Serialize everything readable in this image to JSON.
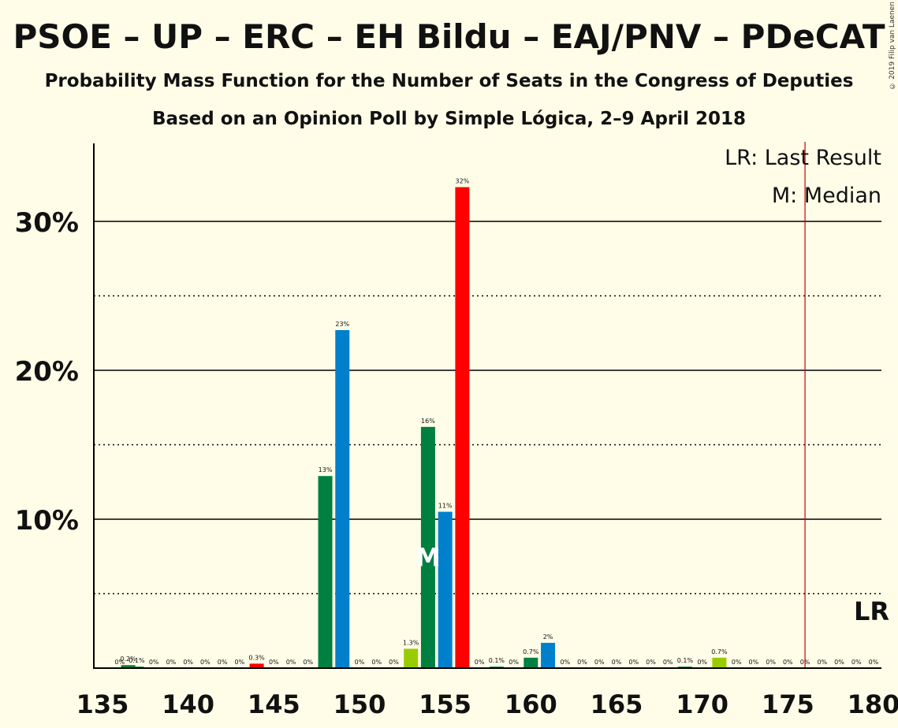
{
  "header": {
    "title": "PSOE – UP – ERC – EH Bildu – EAJ/PNV – PDeCAT",
    "subtitle1": "Probability Mass Function for the Number of Seats in the Congress of Deputies",
    "subtitle2": "Based on an Opinion Poll by Simple Lógica, 2–9 April 2018",
    "copyright": "© 2019 Filip van Laenen"
  },
  "legend": {
    "lr": "LR: Last Result",
    "median": "M: Median",
    "lr_marker": "LR",
    "median_marker": "M"
  },
  "colors": {
    "background": "#FFFDE8",
    "red": "#FF0000",
    "green": "#008040",
    "blue": "#0080CC",
    "lime": "#99CC00",
    "lr_line": "#CC0000"
  },
  "chart_data": {
    "type": "bar",
    "xlim": [
      135,
      180
    ],
    "ylim": [
      0,
      35
    ],
    "x_ticks": [
      135,
      140,
      145,
      150,
      155,
      160,
      165,
      170,
      175,
      180
    ],
    "y_ticks": [
      {
        "value": 10,
        "label": "10%"
      },
      {
        "value": 20,
        "label": "20%"
      },
      {
        "value": 30,
        "label": "30%"
      }
    ],
    "y_minor": [
      5,
      15,
      25
    ],
    "last_result": 176,
    "median": 154,
    "bars": [
      {
        "x": 136,
        "value": 0,
        "label": "0%",
        "color": "green"
      },
      {
        "x": 136.5,
        "value": 0.2,
        "label": "0.2%",
        "color": "green"
      },
      {
        "x": 137,
        "value": 0.1,
        "label": "0.1%",
        "color": "green"
      },
      {
        "x": 138,
        "value": 0,
        "label": "0%",
        "color": "green"
      },
      {
        "x": 139,
        "value": 0,
        "label": "0%",
        "color": "green"
      },
      {
        "x": 140,
        "value": 0,
        "label": "0%",
        "color": "green"
      },
      {
        "x": 141,
        "value": 0,
        "label": "0%",
        "color": "green"
      },
      {
        "x": 142,
        "value": 0,
        "label": "0%",
        "color": "green"
      },
      {
        "x": 143,
        "value": 0,
        "label": "0%",
        "color": "green"
      },
      {
        "x": 144,
        "value": 0.3,
        "label": "0.3%",
        "color": "red"
      },
      {
        "x": 145,
        "value": 0,
        "label": "0%",
        "color": "green"
      },
      {
        "x": 146,
        "value": 0,
        "label": "0%",
        "color": "green"
      },
      {
        "x": 147,
        "value": 0,
        "label": "0%",
        "color": "green"
      },
      {
        "x": 148,
        "value": 12.9,
        "label": "13%",
        "color": "green"
      },
      {
        "x": 149,
        "value": 22.7,
        "label": "23%",
        "color": "blue"
      },
      {
        "x": 150,
        "value": 0,
        "label": "0%",
        "color": "green"
      },
      {
        "x": 151,
        "value": 0,
        "label": "0%",
        "color": "green"
      },
      {
        "x": 152,
        "value": 0,
        "label": "0%",
        "color": "green"
      },
      {
        "x": 153,
        "value": 1.3,
        "label": "1.3%",
        "color": "lime"
      },
      {
        "x": 154,
        "value": 16.2,
        "label": "16%",
        "color": "green"
      },
      {
        "x": 155,
        "value": 10.5,
        "label": "11%",
        "color": "blue"
      },
      {
        "x": 156,
        "value": 32.3,
        "label": "32%",
        "color": "red"
      },
      {
        "x": 157,
        "value": 0,
        "label": "0%",
        "color": "green"
      },
      {
        "x": 158,
        "value": 0.1,
        "label": "0.1%",
        "color": "green"
      },
      {
        "x": 159,
        "value": 0,
        "label": "0%",
        "color": "green"
      },
      {
        "x": 160,
        "value": 0.7,
        "label": "0.7%",
        "color": "green"
      },
      {
        "x": 161,
        "value": 1.7,
        "label": "2%",
        "color": "blue"
      },
      {
        "x": 162,
        "value": 0,
        "label": "0%",
        "color": "green"
      },
      {
        "x": 163,
        "value": 0,
        "label": "0%",
        "color": "green"
      },
      {
        "x": 164,
        "value": 0,
        "label": "0%",
        "color": "green"
      },
      {
        "x": 165,
        "value": 0,
        "label": "0%",
        "color": "green"
      },
      {
        "x": 166,
        "value": 0,
        "label": "0%",
        "color": "green"
      },
      {
        "x": 167,
        "value": 0,
        "label": "0%",
        "color": "green"
      },
      {
        "x": 168,
        "value": 0,
        "label": "0%",
        "color": "green"
      },
      {
        "x": 169,
        "value": 0.1,
        "label": "0.1%",
        "color": "green"
      },
      {
        "x": 170,
        "value": 0,
        "label": "0%",
        "color": "green"
      },
      {
        "x": 171,
        "value": 0.7,
        "label": "0.7%",
        "color": "lime"
      },
      {
        "x": 172,
        "value": 0,
        "label": "0%",
        "color": "green"
      },
      {
        "x": 173,
        "value": 0,
        "label": "0%",
        "color": "green"
      },
      {
        "x": 174,
        "value": 0,
        "label": "0%",
        "color": "green"
      },
      {
        "x": 175,
        "value": 0,
        "label": "0%",
        "color": "green"
      },
      {
        "x": 176,
        "value": 0,
        "label": "0%",
        "color": "green"
      },
      {
        "x": 177,
        "value": 0,
        "label": "0%",
        "color": "green"
      },
      {
        "x": 178,
        "value": 0,
        "label": "0%",
        "color": "green"
      },
      {
        "x": 179,
        "value": 0,
        "label": "0%",
        "color": "green"
      },
      {
        "x": 180,
        "value": 0,
        "label": "0%",
        "color": "green"
      }
    ]
  }
}
